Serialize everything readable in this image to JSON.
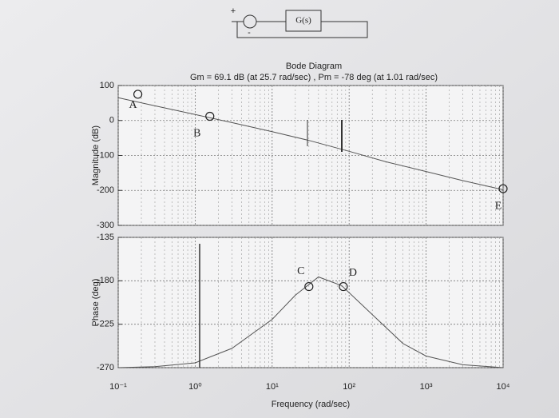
{
  "diagram": {
    "block": "G(s)",
    "plus": "+",
    "minus": "-"
  },
  "chart_data": [
    {
      "type": "line",
      "title": "Bode Diagram",
      "subtitle": "Gm = 69.1 dB (at 25.7 rad/sec) ,  Pm = -78 deg (at 1.01 rad/sec)",
      "ylabel": "Magnitude (dB)",
      "log_x": true,
      "grid": true,
      "x": [
        0.1,
        0.3,
        1,
        3,
        10,
        30,
        100,
        300,
        1000,
        3000,
        10000
      ],
      "series": [
        {
          "name": "Magnitude",
          "color": "#555555",
          "values": [
            65,
            42,
            17,
            -6,
            -32,
            -57,
            -88,
            -118,
            -146,
            -172,
            -198
          ]
        }
      ],
      "xlim": [
        0.1,
        10000
      ],
      "ylim": [
        -300,
        100
      ],
      "yticks": [
        100,
        0,
        -100,
        -200,
        -300
      ],
      "annotations": [
        {
          "text": "A",
          "x": 0.18,
          "y": 75
        },
        {
          "text": "B",
          "x": 1.55,
          "y": 12
        },
        {
          "text": "E",
          "x": 10000,
          "y": -195
        }
      ]
    },
    {
      "type": "line",
      "ylabel": "Phase (deg)",
      "xlabel": "Frequency (rad/sec)",
      "log_x": true,
      "grid": true,
      "x": [
        0.1,
        0.3,
        1,
        3,
        10,
        20,
        40,
        80,
        200,
        500,
        1000,
        3000,
        10000
      ],
      "series": [
        {
          "name": "Phase",
          "color": "#555555",
          "values": [
            -270,
            -269,
            -265,
            -250,
            -220,
            -195,
            -176,
            -185,
            -215,
            -245,
            -258,
            -267,
            -270
          ]
        }
      ],
      "xlim": [
        0.1,
        10000
      ],
      "xticks": [
        {
          "value": 0.1,
          "label": "10⁻¹"
        },
        {
          "value": 1,
          "label": "10⁰"
        },
        {
          "value": 10,
          "label": "10¹"
        },
        {
          "value": 100,
          "label": "10²"
        },
        {
          "value": 1000,
          "label": "10³"
        },
        {
          "value": 10000,
          "label": "10⁴"
        }
      ],
      "ylim": [
        -270,
        -135
      ],
      "yticks": [
        -135,
        -180,
        -225,
        -270
      ],
      "annotations": [
        {
          "text": "C",
          "x": 30,
          "y": -186
        },
        {
          "text": "D",
          "x": 84,
          "y": -186
        }
      ]
    }
  ]
}
